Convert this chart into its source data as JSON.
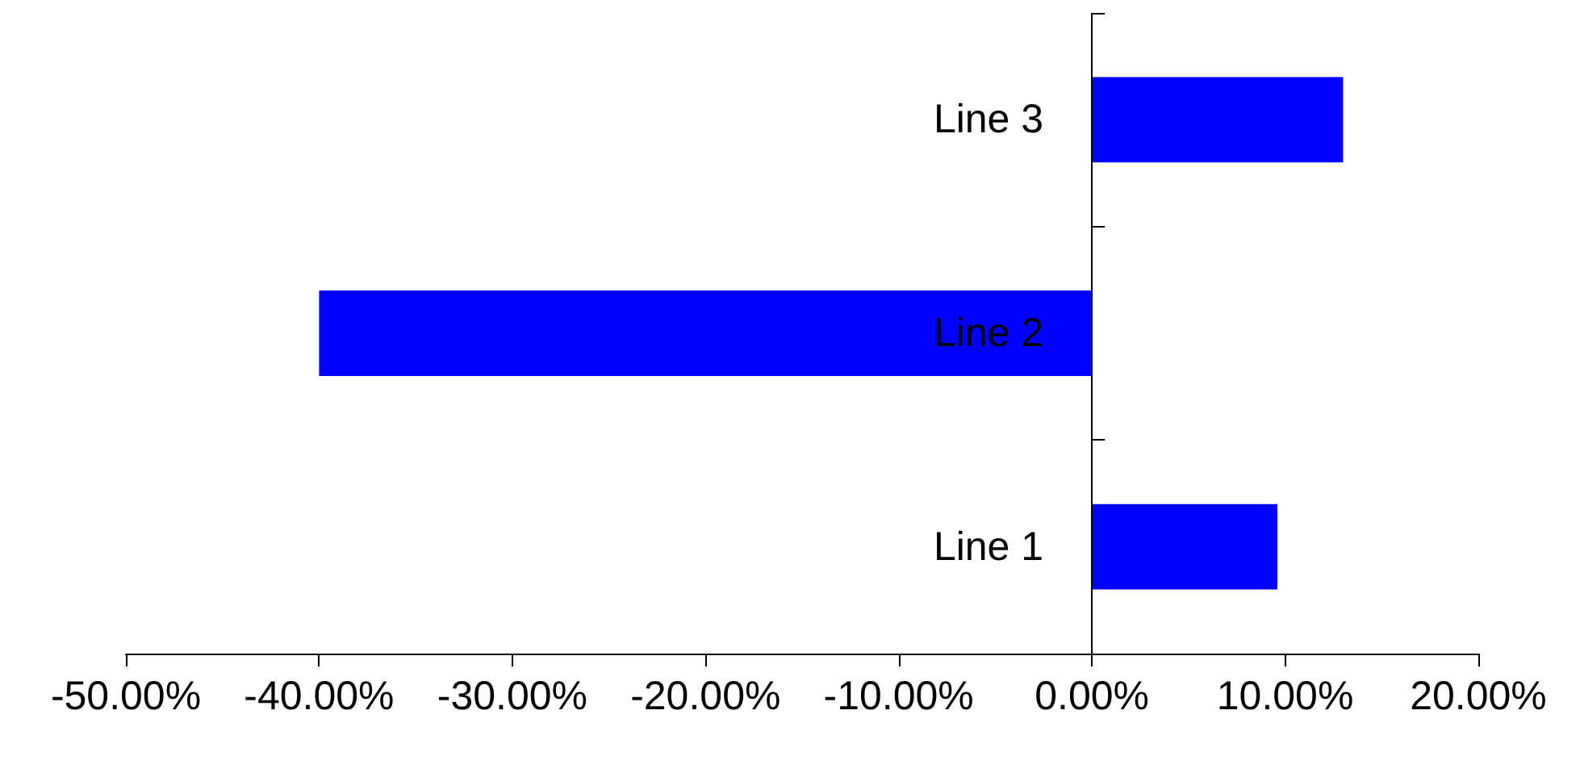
{
  "chart_data": {
    "type": "bar",
    "orientation": "horizontal",
    "categories": [
      "Line 3",
      "Line 2",
      "Line 1"
    ],
    "values": [
      13,
      -40,
      9.6
    ],
    "color": "#0000ff",
    "xlim": [
      -50,
      20
    ],
    "xticks": [
      {
        "value": -50,
        "label": "-50.00%"
      },
      {
        "value": -40,
        "label": "-40.00%"
      },
      {
        "value": -30,
        "label": "-30.00%"
      },
      {
        "value": -20,
        "label": "-20.00%"
      },
      {
        "value": -10,
        "label": "-10.00%"
      },
      {
        "value": 0,
        "label": "0.00%"
      },
      {
        "value": 10,
        "label": "10.00%"
      },
      {
        "value": 20,
        "label": "20.00%"
      }
    ],
    "grid": false
  }
}
